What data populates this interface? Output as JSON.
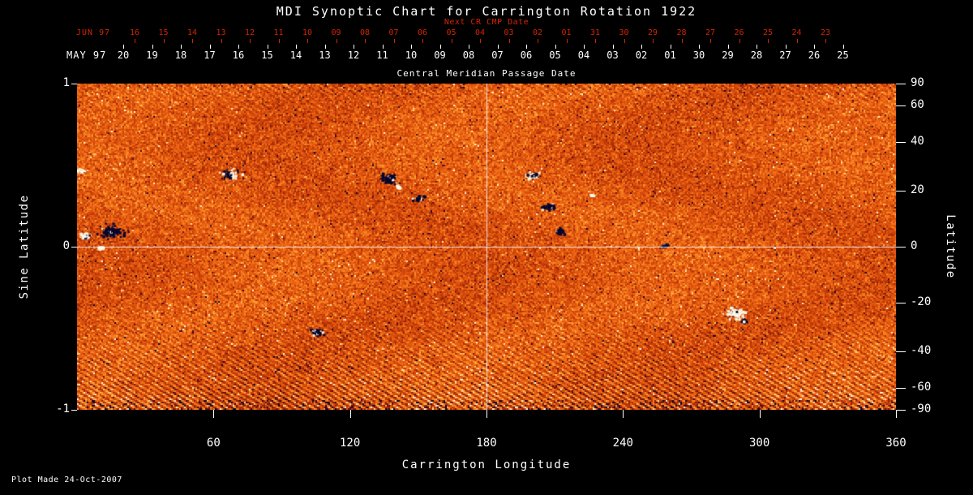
{
  "footer": "Plot Made 24-Oct-2007",
  "colors": {
    "background": "#000000",
    "axis_text": "#ffffff",
    "red_axis": "#d42400",
    "crosshair": "#ffffff",
    "speck_dark": "#06062e",
    "speck_light": "#fff6e2"
  },
  "chart_data": {
    "type": "heatmap",
    "title": "MDI Synoptic Chart for Carrington Rotation 1922",
    "xlabel": "Carrington Longitude",
    "ylabel_left": "Sine Latitude",
    "ylabel_right": "Latitude",
    "xlim": [
      0,
      360
    ],
    "ylim_sine": [
      -1,
      1
    ],
    "x_ticks": [
      60,
      120,
      180,
      240,
      300,
      360
    ],
    "y_left_ticks": [
      "1",
      "0",
      "-1"
    ],
    "y_left_tick_values": [
      1,
      0,
      -1
    ],
    "y_right_ticks": [
      "90",
      "60",
      "40",
      "20",
      "0",
      "-20",
      "-40",
      "-60",
      "-90"
    ],
    "y_right_tick_values": [
      90,
      60,
      40,
      20,
      0,
      -20,
      -40,
      -60,
      -90
    ],
    "top_axis_red": {
      "month_label": "JUN 97",
      "label": "Next CR CMP Date",
      "ticks": [
        "16",
        "15",
        "14",
        "13",
        "12",
        "11",
        "10",
        "09",
        "08",
        "07",
        "06",
        "05",
        "04",
        "03",
        "02",
        "01",
        "31",
        "30",
        "29",
        "28",
        "27",
        "26",
        "25",
        "24",
        "23"
      ]
    },
    "top_axis_white": {
      "month_label": "MAY 97",
      "label": "Central Meridian Passage Date",
      "ticks": [
        "20",
        "19",
        "18",
        "17",
        "16",
        "15",
        "14",
        "13",
        "12",
        "11",
        "10",
        "09",
        "08",
        "07",
        "06",
        "05",
        "04",
        "03",
        "02",
        "01",
        "30",
        "29",
        "28",
        "27",
        "26",
        "25"
      ]
    },
    "crosshair": {
      "carrington_longitude": 180,
      "sine_latitude": 0
    },
    "noise_seed": 1922,
    "colormap": {
      "stops": [
        [
          0.0,
          8,
          6,
          46
        ],
        [
          0.1,
          70,
          10,
          30
        ],
        [
          0.22,
          140,
          30,
          10
        ],
        [
          0.4,
          200,
          62,
          8
        ],
        [
          0.58,
          236,
          98,
          18
        ],
        [
          0.75,
          252,
          146,
          40
        ],
        [
          0.88,
          255,
          198,
          100
        ],
        [
          1.0,
          255,
          250,
          232
        ]
      ]
    },
    "active_regions": [
      {
        "lon": 3,
        "sine_lat": 0.07,
        "polarity": "positive",
        "size": 6
      },
      {
        "lon": 15,
        "sine_lat": 0.1,
        "polarity": "negative",
        "size": 13
      },
      {
        "lon": 10,
        "sine_lat": 0.0,
        "polarity": "positive",
        "size": 3
      },
      {
        "lon": 1.5,
        "sine_lat": 0.47,
        "polarity": "positive",
        "size": 4
      },
      {
        "lon": 67,
        "sine_lat": 0.45,
        "polarity": "mixed-wr",
        "size": 9
      },
      {
        "lon": 137,
        "sine_lat": 0.42,
        "polarity": "negative",
        "size": 10
      },
      {
        "lon": 141,
        "sine_lat": 0.37,
        "polarity": "positive",
        "size": 3
      },
      {
        "lon": 150,
        "sine_lat": 0.3,
        "polarity": "negative",
        "size": 6
      },
      {
        "lon": 200,
        "sine_lat": 0.44,
        "polarity": "mixed-wl",
        "size": 7
      },
      {
        "lon": 207,
        "sine_lat": 0.25,
        "polarity": "negative",
        "size": 7
      },
      {
        "lon": 212,
        "sine_lat": 0.1,
        "polarity": "negative",
        "size": 5
      },
      {
        "lon": 226,
        "sine_lat": 0.32,
        "polarity": "positive",
        "size": 3
      },
      {
        "lon": 258,
        "sine_lat": 0.01,
        "polarity": "negative",
        "size": 4
      },
      {
        "lon": 289,
        "sine_lat": -0.4,
        "polarity": "positive",
        "size": 10
      },
      {
        "lon": 293,
        "sine_lat": -0.45,
        "polarity": "negative",
        "size": 3
      },
      {
        "lon": 105,
        "sine_lat": -0.52,
        "polarity": "negative",
        "size": 7
      }
    ]
  }
}
